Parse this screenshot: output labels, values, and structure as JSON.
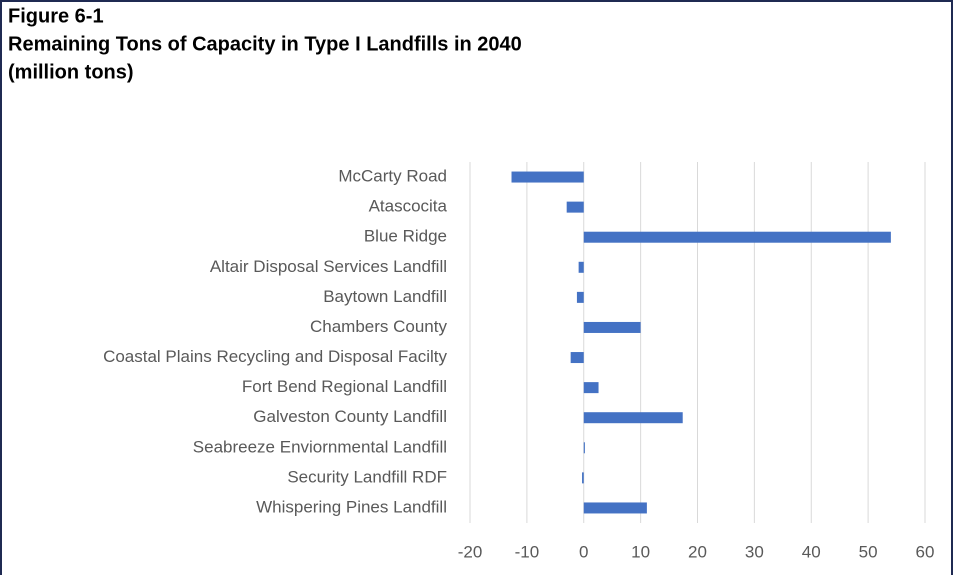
{
  "chart_data": {
    "type": "bar",
    "orientation": "horizontal",
    "figure_label": "Figure 6-1",
    "title": "Remaining Tons of Capacity in Type I Landfills in 2040",
    "subtitle": "(million tons)",
    "categories": [
      "McCarty Road",
      "Atascocita",
      "Blue Ridge",
      "Altair Disposal Services Landfill",
      "Baytown Landfill",
      "Chambers County",
      "Coastal Plains Recycling and Disposal Facilty",
      "Fort Bend Regional Landfill",
      "Galveston County Landfill",
      "Seabreeze Enviornmental Landfill",
      "Security Landfill RDF",
      "Whispering Pines Landfill"
    ],
    "values": [
      -12.7,
      -3,
      54,
      -0.9,
      -1.2,
      10,
      -2.3,
      2.6,
      17.4,
      0.2,
      -0.3,
      11.1
    ],
    "color": "#4472c4",
    "xlim": [
      -20,
      60
    ],
    "xticks": [
      -20,
      -10,
      0,
      10,
      20,
      30,
      40,
      50,
      60
    ],
    "grid": true
  }
}
